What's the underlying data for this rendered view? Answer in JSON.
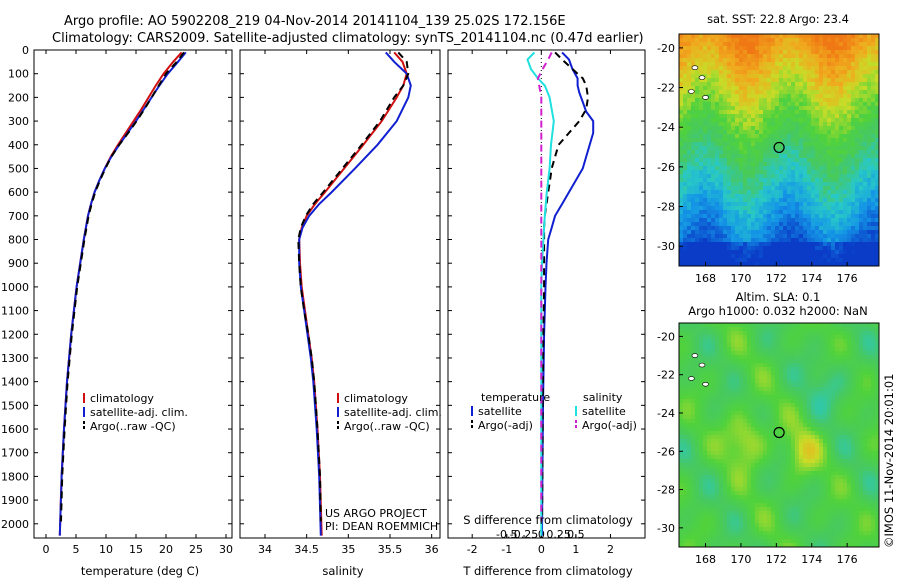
{
  "header": {
    "line1": "Argo profile: AO 5902208_219 04-Nov-2014 20141104_139 25.02S 172.156E",
    "line2": "Climatology: CARS2009. Satellite-adjusted climatology: synTS_20141104.nc (0.47d earlier)"
  },
  "colors": {
    "climatology": "#d01010",
    "satellite": "#1020d0",
    "argo": "#000000",
    "sat_salinity": "#20e0e0",
    "argo_salinity": "#d020d0"
  },
  "depth_axis": {
    "ylim": [
      0,
      2060
    ],
    "ticks": [
      0,
      100,
      200,
      300,
      400,
      500,
      600,
      700,
      800,
      900,
      1000,
      1100,
      1200,
      1300,
      1400,
      1500,
      1600,
      1700,
      1800,
      1900,
      2000
    ]
  },
  "temperature_panel": {
    "xlabel": "temperature (deg C)",
    "xlim": [
      -2,
      31
    ],
    "xticks": [
      0,
      5,
      10,
      15,
      20,
      25,
      30
    ],
    "legend": [
      "climatology",
      "satellite-adj. clim.",
      "Argo(..raw -QC)"
    ],
    "chart_data": {
      "type": "line",
      "series": [
        {
          "name": "climatology",
          "color": "#d01010",
          "style": "solid",
          "depth": [
            10,
            50,
            100,
            150,
            200,
            250,
            300,
            350,
            400,
            450,
            500,
            550,
            600,
            650,
            700,
            800,
            900,
            1000,
            1200,
            1400,
            1600,
            1800,
            2050
          ],
          "values": [
            22.6,
            21.2,
            19.6,
            18.3,
            17.1,
            15.9,
            14.6,
            13.3,
            12.0,
            10.8,
            9.8,
            8.9,
            8.1,
            7.5,
            7.0,
            6.3,
            5.7,
            5.1,
            4.2,
            3.5,
            3.0,
            2.6,
            2.3
          ]
        },
        {
          "name": "satellite-adj. clim.",
          "color": "#1020d0",
          "style": "solid",
          "depth": [
            10,
            50,
            100,
            150,
            200,
            250,
            300,
            350,
            400,
            450,
            500,
            550,
            600,
            650,
            700,
            800,
            900,
            1000,
            1200,
            1400,
            1600,
            1800,
            2050
          ],
          "values": [
            23.3,
            22.0,
            20.3,
            18.9,
            17.6,
            16.3,
            15.0,
            13.6,
            12.2,
            10.9,
            9.8,
            8.9,
            8.1,
            7.5,
            7.0,
            6.3,
            5.7,
            5.1,
            4.2,
            3.5,
            3.0,
            2.6,
            2.3
          ]
        },
        {
          "name": "Argo(..raw -QC)",
          "color": "#000000",
          "style": "dashed",
          "depth": [
            10,
            50,
            100,
            150,
            200,
            250,
            300,
            350,
            400,
            450,
            500,
            550,
            600,
            650,
            700,
            800,
            900,
            1000,
            1200,
            1400,
            1600,
            1800,
            1990
          ],
          "values": [
            23.0,
            21.8,
            20.0,
            18.8,
            17.6,
            16.4,
            15.1,
            13.7,
            12.2,
            10.9,
            9.9,
            9.0,
            8.2,
            7.6,
            7.1,
            6.4,
            5.8,
            5.2,
            4.3,
            3.6,
            3.1,
            2.7,
            2.5
          ]
        }
      ]
    }
  },
  "salinity_panel": {
    "xlabel": "salinity",
    "xlim": [
      33.7,
      36.1
    ],
    "xticks": [
      34,
      34.5,
      35,
      35.5,
      36
    ],
    "legend": [
      "climatology",
      "satellite-adj. clim.",
      "Argo(..raw -QC)"
    ],
    "note_line1": "US ARGO PROJECT",
    "note_line2": "PI: DEAN ROEMMICH",
    "chart_data": {
      "type": "line",
      "series": [
        {
          "name": "climatology",
          "color": "#d01010",
          "style": "solid",
          "depth": [
            10,
            50,
            100,
            150,
            200,
            300,
            400,
            500,
            600,
            650,
            700,
            750,
            800,
            900,
            1000,
            1100,
            1200,
            1300,
            1400,
            1600,
            1800,
            2050
          ],
          "values": [
            35.55,
            35.65,
            35.7,
            35.66,
            35.58,
            35.4,
            35.18,
            34.95,
            34.72,
            34.6,
            34.5,
            34.44,
            34.41,
            34.42,
            34.44,
            34.48,
            34.52,
            34.56,
            34.59,
            34.63,
            34.66,
            34.68
          ]
        },
        {
          "name": "satellite-adj. clim.",
          "color": "#1020d0",
          "style": "solid",
          "depth": [
            10,
            50,
            100,
            150,
            200,
            300,
            400,
            500,
            600,
            650,
            700,
            750,
            800,
            900,
            1000,
            1100,
            1200,
            1300,
            1400,
            1600,
            1800,
            2050
          ],
          "values": [
            35.45,
            35.55,
            35.7,
            35.75,
            35.72,
            35.58,
            35.35,
            35.08,
            34.8,
            34.65,
            34.53,
            34.45,
            34.41,
            34.41,
            34.43,
            34.47,
            34.51,
            34.55,
            34.58,
            34.62,
            34.65,
            34.67
          ]
        },
        {
          "name": "Argo(..raw -QC)",
          "color": "#000000",
          "style": "dashed",
          "depth": [
            10,
            50,
            100,
            150,
            200,
            300,
            400,
            500,
            600,
            650,
            700,
            750,
            800,
            900,
            1000,
            1100,
            1200,
            1300,
            1400,
            1600,
            1800,
            1990
          ],
          "values": [
            35.6,
            35.7,
            35.72,
            35.66,
            35.55,
            35.38,
            35.16,
            34.93,
            34.7,
            34.58,
            34.49,
            34.43,
            34.4,
            34.41,
            34.43,
            34.47,
            34.52,
            34.56,
            34.59,
            34.63,
            34.66,
            34.67
          ]
        }
      ]
    }
  },
  "difference_panel": {
    "xlabel": "T difference from climatology",
    "xlabel_top": "S difference from climatology",
    "xlim": [
      -2.7,
      3.0
    ],
    "xticks": [
      -2,
      -1,
      0,
      1,
      2
    ],
    "xticks_top": [
      -0.5,
      -0.25,
      0,
      0.25,
      0.5
    ],
    "xticks_top_labels": [
      "-0.5",
      "-0.25",
      "0",
      "0.25",
      "0.5"
    ],
    "legend_temp_title": "temperature",
    "legend_sal_title": "salinity",
    "legend_temp": [
      "satellite",
      "Argo(-adj)"
    ],
    "legend_sal": [
      "satellite",
      "Argo(-adj)"
    ],
    "chart_data": {
      "type": "line",
      "series": [
        {
          "name": "T satellite",
          "color": "#1020d0",
          "style": "solid",
          "depth": [
            10,
            40,
            80,
            120,
            150,
            180,
            220,
            260,
            300,
            350,
            400,
            450,
            500,
            550,
            600,
            650,
            700,
            750,
            800,
            900,
            1000,
            1200,
            1500,
            1800,
            2050
          ],
          "values": [
            0.6,
            0.8,
            0.9,
            1.05,
            1.05,
            1.1,
            1.2,
            1.3,
            1.5,
            1.5,
            1.4,
            1.3,
            1.2,
            1.0,
            0.8,
            0.6,
            0.4,
            0.3,
            0.2,
            0.15,
            0.12,
            0.08,
            0.05,
            0.03,
            0.02
          ]
        },
        {
          "name": "T Argo(-adj)",
          "color": "#000000",
          "style": "dashed",
          "depth": [
            10,
            40,
            80,
            120,
            150,
            200,
            250,
            300,
            350,
            400,
            450,
            500,
            550,
            600,
            650,
            700,
            750,
            800,
            900,
            1000,
            1200,
            1500,
            1800,
            1990
          ],
          "values": [
            0.4,
            0.6,
            0.9,
            1.2,
            1.3,
            1.35,
            1.3,
            1.1,
            0.8,
            0.5,
            0.4,
            0.3,
            0.25,
            0.2,
            0.15,
            0.1,
            0.08,
            0.08,
            0.08,
            0.08,
            0.06,
            0.04,
            0.03,
            0.02
          ]
        },
        {
          "name": "S satellite",
          "color": "#20e0e0",
          "style": "solid",
          "depth": [
            10,
            40,
            80,
            120,
            150,
            200,
            300,
            400,
            500,
            600,
            700,
            800,
            900,
            1000,
            1100,
            1200,
            1400,
            1600,
            1800,
            2050
          ],
          "values": [
            -0.1,
            -0.2,
            -0.15,
            -0.05,
            0.05,
            0.12,
            0.18,
            0.14,
            0.12,
            0.08,
            0.05,
            0.03,
            0.01,
            0.0,
            0.0,
            0.0,
            0.0,
            0.0,
            0.0,
            0.0
          ]
        },
        {
          "name": "S Argo(-adj)",
          "color": "#d020d0",
          "style": "dashed",
          "depth": [
            10,
            40,
            80,
            120,
            150,
            200,
            300,
            400,
            500,
            600,
            700,
            800,
            900,
            1000,
            1200,
            1400,
            1600,
            1800,
            1990
          ],
          "values": [
            0.15,
            0.1,
            0.02,
            -0.05,
            -0.03,
            0.0,
            0.0,
            0.0,
            0.0,
            0.0,
            0.0,
            0.0,
            0.0,
            0.0,
            0.0,
            0.0,
            0.0,
            0.0,
            0.0
          ]
        }
      ]
    }
  },
  "sst_map": {
    "title": "sat. SST: 22.8 Argo: 23.4",
    "xlim": [
      166.5,
      177.8
    ],
    "ylim": [
      -31,
      -19.3
    ],
    "xticks": [
      168,
      170,
      172,
      174,
      176
    ],
    "yticks": [
      -20,
      -22,
      -24,
      -26,
      -28,
      -30
    ],
    "marker": {
      "lon": 172.156,
      "lat": -25.02
    }
  },
  "sla_map": {
    "title_line1": "Altim. SLA: 0.1",
    "title_line2": "Argo h1000: 0.032 h2000: NaN",
    "xlim": [
      166.5,
      177.8
    ],
    "ylim": [
      -31,
      -19.3
    ],
    "xticks": [
      168,
      170,
      172,
      174,
      176
    ],
    "yticks": [
      -20,
      -22,
      -24,
      -26,
      -28,
      -30
    ],
    "marker": {
      "lon": 172.156,
      "lat": -25.02
    }
  },
  "watermark": "©IMOS 11-Nov-2014 20:01:01"
}
